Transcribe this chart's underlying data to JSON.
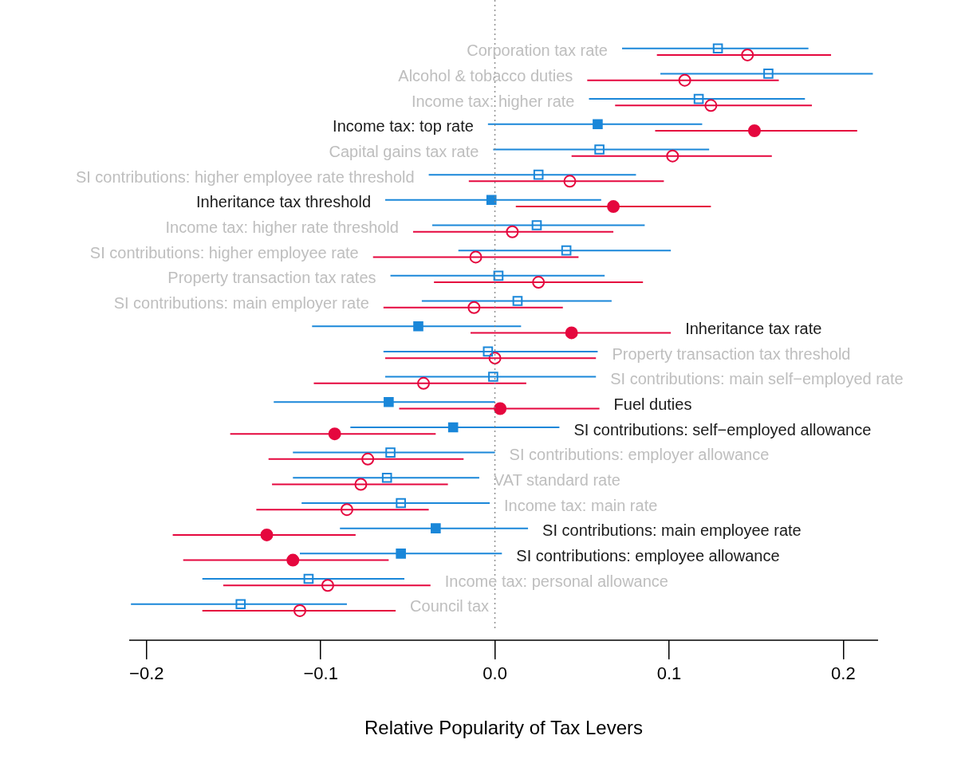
{
  "chart_data": {
    "type": "scatter",
    "orientation": "horizontal",
    "xlabel": "Relative Popularity of Tax Levers",
    "tick_labels": "x",
    "grid": false,
    "categories": [
      "Corporation tax rate",
      "Alcohol & tobacco duties",
      "Income tax: higher rate",
      "Income tax: top rate",
      "Capital gains tax rate",
      "SI contributions: higher employee rate threshold",
      "Inheritance tax threshold",
      "Income tax: higher rate threshold",
      "SI contributions: higher employee rate",
      "Property transaction tax rates",
      "SI contributions: main employer rate",
      "Inheritance tax rate",
      "Property transaction tax threshold",
      "SI contributions: main self−employed rate",
      "Fuel duties",
      "SI contributions: self−employed allowance",
      "SI contributions: employer allowance",
      "VAT standard rate",
      "Income tax: main rate",
      "SI contributions: main employee rate",
      "SI contributions: employee allowance",
      "Income tax: personal allowance",
      "Council tax"
    ],
    "xlim": [
      -0.21,
      0.22
    ],
    "xticks": [
      {
        "value": -0.2,
        "label": "−0.2"
      },
      {
        "value": -0.1,
        "label": "−0.1"
      },
      {
        "value": 0,
        "label": "0.0"
      },
      {
        "value": 0.1,
        "label": "0.1"
      },
      {
        "value": 0.2,
        "label": "0.2"
      }
    ],
    "ref_lines": [
      {
        "axis": "x",
        "value": 0,
        "color": "#808080",
        "line_style": "dotted"
      }
    ],
    "series": [
      {
        "color": "#1a87d9",
        "marker": "square",
        "values": [
          0.128,
          0.157,
          0.117,
          null,
          0.06,
          0.025,
          null,
          0.024,
          0.041,
          0.002,
          0.013,
          null,
          -0.004,
          -0.001,
          null,
          null,
          -0.06,
          -0.062,
          -0.054,
          null,
          null,
          -0.107,
          -0.146
        ],
        "errors": [
          [
            0.073,
            0.18
          ],
          [
            0.095,
            0.217
          ],
          [
            0.054,
            0.178
          ],
          null,
          [
            -0.001,
            0.123
          ],
          [
            -0.038,
            0.081
          ],
          null,
          [
            -0.036,
            0.086
          ],
          [
            -0.021,
            0.101
          ],
          [
            -0.06,
            0.063
          ],
          [
            -0.042,
            0.067
          ],
          null,
          [
            -0.064,
            0.059
          ],
          [
            -0.063,
            0.058
          ],
          null,
          null,
          [
            -0.116,
            0.0
          ],
          [
            -0.116,
            -0.009
          ],
          [
            -0.111,
            -0.003
          ],
          null,
          null,
          [
            -0.168,
            -0.052
          ],
          [
            -0.209,
            -0.085
          ]
        ]
      },
      {
        "color": "#1a87d9",
        "marker": "square",
        "values": [
          null,
          null,
          null,
          0.059,
          null,
          null,
          -0.002,
          null,
          null,
          null,
          null,
          -0.044,
          null,
          null,
          -0.061,
          -0.024,
          null,
          null,
          null,
          -0.034,
          -0.054,
          null,
          null
        ],
        "errors": [
          null,
          null,
          null,
          [
            -0.004,
            0.119
          ],
          null,
          null,
          [
            -0.063,
            0.061
          ],
          null,
          null,
          null,
          null,
          [
            -0.105,
            0.015
          ],
          null,
          null,
          [
            -0.127,
            0.0
          ],
          [
            -0.083,
            0.037
          ],
          null,
          null,
          null,
          [
            -0.089,
            0.019
          ],
          [
            -0.112,
            0.004
          ],
          null,
          null
        ]
      },
      {
        "color": "#e5073e",
        "marker": "circle",
        "values": [
          0.145,
          0.109,
          0.124,
          null,
          0.102,
          0.043,
          null,
          0.01,
          -0.011,
          0.025,
          -0.012,
          null,
          0.0,
          -0.041,
          null,
          null,
          -0.073,
          -0.077,
          -0.085,
          null,
          null,
          -0.096,
          -0.112
        ],
        "errors": [
          [
            0.093,
            0.193
          ],
          [
            0.053,
            0.163
          ],
          [
            0.069,
            0.182
          ],
          null,
          [
            0.044,
            0.159
          ],
          [
            -0.015,
            0.097
          ],
          null,
          [
            -0.047,
            0.068
          ],
          [
            -0.07,
            0.048
          ],
          [
            -0.035,
            0.085
          ],
          [
            -0.064,
            0.039
          ],
          null,
          [
            -0.063,
            0.058
          ],
          [
            -0.104,
            0.018
          ],
          null,
          null,
          [
            -0.13,
            -0.018
          ],
          [
            -0.128,
            -0.027
          ],
          [
            -0.137,
            -0.038
          ],
          null,
          null,
          [
            -0.156,
            -0.037
          ],
          [
            -0.168,
            -0.057
          ]
        ]
      },
      {
        "color": "#e5073e",
        "marker": "circle",
        "values": [
          null,
          null,
          null,
          0.149,
          null,
          null,
          0.068,
          null,
          null,
          null,
          null,
          0.044,
          null,
          null,
          0.003,
          -0.092,
          null,
          null,
          null,
          -0.131,
          -0.116,
          null,
          null
        ],
        "errors": [
          null,
          null,
          null,
          [
            0.092,
            0.208
          ],
          null,
          null,
          [
            0.012,
            0.124
          ],
          null,
          null,
          null,
          null,
          [
            -0.014,
            0.101
          ],
          null,
          null,
          [
            -0.055,
            0.06
          ],
          [
            -0.152,
            -0.034
          ],
          null,
          null,
          null,
          [
            -0.185,
            -0.08
          ],
          [
            -0.179,
            -0.061
          ],
          null,
          null
        ]
      }
    ]
  }
}
